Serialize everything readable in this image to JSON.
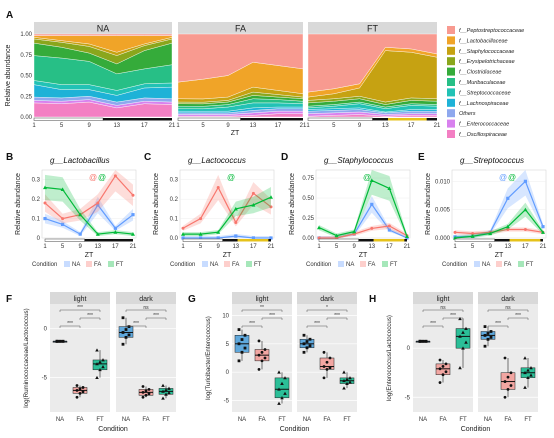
{
  "panel_labels": [
    "A",
    "B",
    "C",
    "D",
    "E",
    "F",
    "G",
    "H"
  ],
  "chart_data": [
    {
      "id": "A",
      "type": "area",
      "ylabel": "Relative abundance",
      "xlabel": "ZT",
      "x": [
        1,
        5,
        9,
        13,
        17,
        21
      ],
      "xticks": [
        "1",
        "5",
        "9",
        "13",
        "17",
        "21"
      ],
      "yticks": [
        "0.00",
        "0.25",
        "0.50",
        "0.75",
        "1.00"
      ],
      "ylim": [
        0,
        1
      ],
      "facets": [
        "NA",
        "FA",
        "FT"
      ],
      "legend_position": "right",
      "series_names": [
        "f__Peptostreptococcaceae",
        "f__Lactobacillaceae",
        "f__Staphylococcaceae",
        "f__Erysipelotrichaceae",
        "f__Clostridiaceae",
        "f__Muribaculaceae",
        "f__Streptococcaceae",
        "f__Lachnospiraceae",
        "Others",
        "f__Enterococcaceae",
        "f__Oscillospiraceae"
      ],
      "series_colors": [
        "#f89a90",
        "#f0a428",
        "#c6a212",
        "#8aa61c",
        "#35ab3a",
        "#27bf86",
        "#22c2b5",
        "#1eb2d7",
        "#8ea8ee",
        "#d881ee",
        "#f37fc3"
      ],
      "facet_values": {
        "NA": [
          [
            0.02,
            0.02,
            0.02,
            0.02,
            0.02,
            0.02
          ],
          [
            0.02,
            0.06,
            0.1,
            0.2,
            0.1,
            0.02
          ],
          [
            0.02,
            0.02,
            0.03,
            0.04,
            0.02,
            0.02
          ],
          [
            0.05,
            0.06,
            0.08,
            0.1,
            0.06,
            0.05
          ],
          [
            0.15,
            0.13,
            0.1,
            0.12,
            0.22,
            0.26
          ],
          [
            0.3,
            0.32,
            0.28,
            0.2,
            0.18,
            0.22
          ],
          [
            0.05,
            0.06,
            0.06,
            0.06,
            0.05,
            0.05
          ],
          [
            0.15,
            0.1,
            0.08,
            0.08,
            0.12,
            0.14
          ],
          [
            0.04,
            0.04,
            0.04,
            0.04,
            0.04,
            0.04
          ],
          [
            0.03,
            0.03,
            0.03,
            0.03,
            0.03,
            0.03
          ],
          [
            0.17,
            0.16,
            0.18,
            0.11,
            0.16,
            0.15
          ]
        ],
        "FA": [
          [
            0.58,
            0.55,
            0.5,
            0.34,
            0.38,
            0.42
          ],
          [
            0.2,
            0.24,
            0.26,
            0.3,
            0.3,
            0.3
          ],
          [
            0.04,
            0.04,
            0.04,
            0.06,
            0.05,
            0.04
          ],
          [
            0.02,
            0.02,
            0.02,
            0.04,
            0.03,
            0.02
          ],
          [
            0.03,
            0.03,
            0.03,
            0.04,
            0.03,
            0.03
          ],
          [
            0.03,
            0.03,
            0.03,
            0.05,
            0.04,
            0.03
          ],
          [
            0.03,
            0.03,
            0.05,
            0.06,
            0.05,
            0.04
          ],
          [
            0.02,
            0.02,
            0.02,
            0.03,
            0.02,
            0.02
          ],
          [
            0.02,
            0.02,
            0.02,
            0.03,
            0.03,
            0.03
          ],
          [
            0.02,
            0.02,
            0.02,
            0.03,
            0.03,
            0.03
          ],
          [
            0.01,
            0.01,
            0.01,
            0.02,
            0.04,
            0.04
          ]
        ],
        "FT": [
          [
            0.7,
            0.66,
            0.6,
            0.16,
            0.18,
            0.24
          ],
          [
            0.06,
            0.06,
            0.05,
            0.04,
            0.04,
            0.04
          ],
          [
            0.04,
            0.06,
            0.1,
            0.62,
            0.55,
            0.5
          ],
          [
            0.03,
            0.03,
            0.03,
            0.03,
            0.03,
            0.03
          ],
          [
            0.04,
            0.04,
            0.04,
            0.03,
            0.04,
            0.04
          ],
          [
            0.02,
            0.02,
            0.02,
            0.02,
            0.02,
            0.02
          ],
          [
            0.02,
            0.03,
            0.05,
            0.04,
            0.05,
            0.04
          ],
          [
            0.02,
            0.02,
            0.02,
            0.01,
            0.02,
            0.02
          ],
          [
            0.03,
            0.03,
            0.03,
            0.02,
            0.03,
            0.03
          ],
          [
            0.03,
            0.03,
            0.03,
            0.02,
            0.02,
            0.02
          ],
          [
            0.01,
            0.02,
            0.03,
            0.01,
            0.02,
            0.02
          ]
        ]
      }
    },
    {
      "id": "B",
      "type": "line",
      "title": "g__Lactobacillus",
      "ylabel": "Relative abundance",
      "xlabel": "ZT",
      "x": [
        1,
        5,
        9,
        13,
        17,
        21
      ],
      "xticks": [
        "1",
        "5",
        "9",
        "13",
        "17",
        "21"
      ],
      "yticks": [
        "0",
        "0.1",
        "0.2",
        "0.3"
      ],
      "ylim": [
        0,
        0.35
      ],
      "annotation": "@ @",
      "annotation_colors": [
        "#f8766d",
        "#00ba38"
      ],
      "series": [
        {
          "name": "NA",
          "color": "#619cff",
          "values": [
            0.1,
            0.07,
            0.02,
            0.17,
            0.05,
            0.12
          ]
        },
        {
          "name": "FA",
          "color": "#f8766d",
          "values": [
            0.18,
            0.1,
            0.12,
            0.18,
            0.32,
            0.22
          ]
        },
        {
          "name": "FT",
          "color": "#00ba38",
          "values": [
            0.26,
            0.25,
            0.12,
            0.02,
            0.03,
            0.02
          ]
        }
      ],
      "legend": {
        "title": "Condition",
        "items": [
          "NA",
          "FA",
          "FT"
        ]
      }
    },
    {
      "id": "C",
      "type": "line",
      "title": "g__Lactococcus",
      "ylabel": "Relative abundance",
      "xlabel": "ZT",
      "x": [
        1,
        5,
        9,
        13,
        17,
        21
      ],
      "xticks": [
        "1",
        "5",
        "9",
        "13",
        "17",
        "21"
      ],
      "yticks": [
        "0.0",
        "0.1",
        "0.2",
        "0.3"
      ],
      "ylim": [
        0,
        0.35
      ],
      "annotation": "@",
      "annotation_colors": [
        "#00ba38"
      ],
      "series": [
        {
          "name": "NA",
          "color": "#619cff",
          "values": [
            0.0,
            0.0,
            0.0,
            0.01,
            0.0,
            0.0
          ]
        },
        {
          "name": "FA",
          "color": "#f8766d",
          "values": [
            0.05,
            0.1,
            0.26,
            0.08,
            0.23,
            0.16
          ]
        },
        {
          "name": "FT",
          "color": "#00ba38",
          "values": [
            0.02,
            0.02,
            0.03,
            0.15,
            0.17,
            0.21
          ]
        }
      ],
      "legend": {
        "title": "Condition",
        "items": [
          "NA",
          "FA",
          "FT"
        ]
      }
    },
    {
      "id": "D",
      "type": "line",
      "title": "g__Staphylococcus",
      "ylabel": "Relative abundance",
      "xlabel": "ZT",
      "x": [
        1,
        5,
        9,
        13,
        17,
        21
      ],
      "xticks": [
        "1",
        "5",
        "9",
        "13",
        "17",
        "21"
      ],
      "yticks": [
        "0.00",
        "0.25",
        "0.50",
        "0.75"
      ],
      "ylim": [
        0,
        0.85
      ],
      "annotation": "@",
      "annotation_colors": [
        "#00ba38"
      ],
      "series": [
        {
          "name": "NA",
          "color": "#619cff",
          "values": [
            0.0,
            0.0,
            0.05,
            0.42,
            0.1,
            0.0
          ]
        },
        {
          "name": "FA",
          "color": "#f8766d",
          "values": [
            0.0,
            0.0,
            0.05,
            0.12,
            0.15,
            0.03
          ]
        },
        {
          "name": "FT",
          "color": "#00ba38",
          "values": [
            0.13,
            0.03,
            0.08,
            0.72,
            0.62,
            0.02
          ]
        }
      ],
      "legend": {
        "title": "Condition",
        "items": [
          "NA",
          "FA",
          "FT"
        ]
      }
    },
    {
      "id": "E",
      "type": "line",
      "title": "g__Streptococcus",
      "ylabel": "Relative abundance",
      "xlabel": "ZT",
      "x": [
        1,
        5,
        9,
        13,
        17,
        21
      ],
      "xticks": [
        "1",
        "5",
        "9",
        "13",
        "17",
        "21"
      ],
      "yticks": [
        "0.000",
        "0.005",
        "0.010"
      ],
      "ylim": [
        0,
        0.012
      ],
      "annotation": "@ @",
      "annotation_colors": [
        "#619cff",
        "#00ba38"
      ],
      "series": [
        {
          "name": "NA",
          "color": "#619cff",
          "values": [
            0.0002,
            0.0003,
            0.001,
            0.007,
            0.01,
            0.002
          ]
        },
        {
          "name": "FA",
          "color": "#f8766d",
          "values": [
            0.001,
            0.0008,
            0.001,
            0.0015,
            0.0015,
            0.001
          ]
        },
        {
          "name": "FT",
          "color": "#00ba38",
          "values": [
            0.0,
            0.0003,
            0.0008,
            0.002,
            0.005,
            0.001
          ]
        }
      ],
      "legend": {
        "title": "Condition",
        "items": [
          "NA",
          "FA",
          "FT"
        ]
      }
    },
    {
      "id": "F",
      "type": "box",
      "ylabel": "log(Ruminococcaceae/Lactococcus)",
      "xlabel": "Condition",
      "categories": [
        "NA",
        "FA",
        "FT"
      ],
      "facets": [
        "light",
        "dark"
      ],
      "yticks": [
        "-5",
        "0"
      ],
      "ylim": [
        -8.5,
        2.5
      ],
      "colors": [
        "#5fa8dc",
        "#f2a6a2",
        "#2bbf98"
      ],
      "facet_boxes": {
        "light": [
          [
            -1.3,
            -1.3,
            -1.3,
            -1.3,
            -1.3
          ],
          [
            -7.0,
            -6.6,
            -6.3,
            -6.0,
            -5.8
          ],
          [
            -5.0,
            -4.2,
            -3.6,
            -3.2,
            -2.2
          ]
        ],
        "dark": [
          [
            -1.6,
            -0.9,
            -0.4,
            0.2,
            1.1
          ],
          [
            -7.0,
            -6.8,
            -6.5,
            -6.2,
            -5.9
          ],
          [
            -7.1,
            -6.7,
            -6.4,
            -6.1,
            -5.8
          ]
        ]
      },
      "comparisons": {
        "light": [
          "***",
          "***",
          "***"
        ],
        "dark": [
          "***",
          "***",
          "ns"
        ]
      }
    },
    {
      "id": "G",
      "type": "box",
      "ylabel": "log(Turicibacter/Enterococcus)",
      "xlabel": "Condition",
      "categories": [
        "NA",
        "FA",
        "FT"
      ],
      "facets": [
        "light",
        "dark"
      ],
      "yticks": [
        "-5",
        "0",
        "5",
        "10"
      ],
      "ylim": [
        -7,
        12
      ],
      "colors": [
        "#5fa8dc",
        "#f2a6a2",
        "#2bbf98"
      ],
      "facet_boxes": {
        "light": [
          [
            2.0,
            3.5,
            5.0,
            6.5,
            7.5
          ],
          [
            0.5,
            2.0,
            3.0,
            4.0,
            5.5
          ],
          [
            -5.5,
            -4.5,
            -3.0,
            -1.0,
            0.0
          ]
        ],
        "dark": [
          [
            3.5,
            4.3,
            5.0,
            5.8,
            6.5
          ],
          [
            -1.0,
            0.5,
            1.0,
            2.5,
            3.5
          ],
          [
            -2.8,
            -2.0,
            -1.5,
            -1.0,
            0.0
          ]
        ]
      },
      "comparisons": {
        "light": [
          "***",
          "***",
          "**"
        ],
        "dark": [
          "***",
          "***",
          "*"
        ]
      }
    },
    {
      "id": "H",
      "type": "box",
      "ylabel": "log(Enterococcus/Lactococcus)",
      "xlabel": "Condition",
      "categories": [
        "NA",
        "FA",
        "FT"
      ],
      "facets": [
        "light",
        "dark"
      ],
      "yticks": [
        "-5",
        "0"
      ],
      "ylim": [
        -6.5,
        4.5
      ],
      "colors": [
        "#5fa8dc",
        "#f2a6a2",
        "#2bbf98"
      ],
      "facet_boxes": {
        "light": [
          [
            0.7,
            0.7,
            0.7,
            0.7,
            0.7
          ],
          [
            -3.5,
            -2.7,
            -2.1,
            -1.6,
            -1.2
          ],
          [
            -2.0,
            0.0,
            1.2,
            2.0,
            3.0
          ]
        ],
        "dark": [
          [
            0.2,
            0.9,
            1.3,
            1.7,
            2.2
          ],
          [
            -5.0,
            -4.2,
            -3.4,
            -2.5,
            -1.0
          ],
          [
            -4.0,
            -3.0,
            -2.5,
            -2.0,
            -1.0
          ]
        ]
      },
      "comparisons": {
        "light": [
          "***",
          "***",
          "ns"
        ],
        "dark": [
          "***",
          "***",
          "ns"
        ]
      }
    }
  ]
}
